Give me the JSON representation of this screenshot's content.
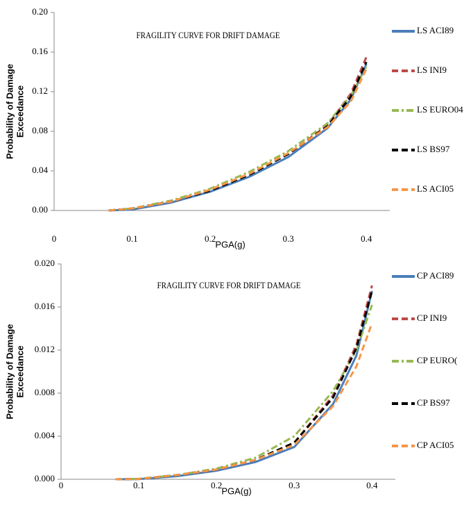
{
  "chart_data": [
    {
      "type": "line",
      "title": "FRAGILITY CURVE FOR DRIFT DAMAGE",
      "xlabel": "PGA(g)",
      "ylabel": [
        "Probability of Damage",
        "Exceedance"
      ],
      "x": [
        0.07,
        0.1,
        0.15,
        0.2,
        0.25,
        0.3,
        0.35,
        0.38,
        0.4
      ],
      "xlim": [
        0,
        0.43
      ],
      "xticks": [
        0,
        0.1,
        0.2,
        0.3,
        0.4
      ],
      "ylim": [
        0,
        0.2
      ],
      "yticks": [
        {
          "value": 0,
          "label": "0.00"
        },
        {
          "value": 0.04,
          "label": "0.04"
        },
        {
          "value": 0.08,
          "label": "0.08"
        },
        {
          "value": 0.12,
          "label": "0.12"
        },
        {
          "value": 0.16,
          "label": "0.16"
        },
        {
          "value": 0.2,
          "label": "0.20"
        }
      ],
      "legend": "right",
      "series": [
        {
          "name": "LS ACI89",
          "color": "#4a7ebb",
          "dash": "solid",
          "values": [
            0,
            0.001,
            0.008,
            0.019,
            0.034,
            0.054,
            0.083,
            0.112,
            0.148
          ]
        },
        {
          "name": "LS INI9",
          "color": "#be4b48",
          "dash": "dash",
          "values": [
            0,
            0.002,
            0.009,
            0.021,
            0.037,
            0.057,
            0.086,
            0.118,
            0.155
          ]
        },
        {
          "name": "LS EURO04",
          "color": "#98b954",
          "dash": "dashdot",
          "values": [
            0,
            0.002,
            0.01,
            0.022,
            0.039,
            0.06,
            0.088,
            0.116,
            0.145
          ]
        },
        {
          "name": "LS BS97",
          "color": "#000000",
          "dash": "dash",
          "values": [
            0,
            0.002,
            0.009,
            0.02,
            0.036,
            0.057,
            0.085,
            0.115,
            0.15
          ]
        },
        {
          "name": "LS ACI05",
          "color": "#f79646",
          "dash": "dash",
          "values": [
            0,
            0.002,
            0.009,
            0.021,
            0.037,
            0.058,
            0.084,
            0.11,
            0.143
          ]
        }
      ]
    },
    {
      "type": "line",
      "title": "FRAGILITY CURVE FOR DRIFT DAMAGE",
      "xlabel": "PGA(g)",
      "ylabel": [
        "Probability of Damage",
        "Exceedance"
      ],
      "x": [
        0.07,
        0.1,
        0.15,
        0.2,
        0.25,
        0.3,
        0.35,
        0.38,
        0.4
      ],
      "xlim": [
        0,
        0.43
      ],
      "xticks": [
        0,
        0.1,
        0.2,
        0.3,
        0.4
      ],
      "ylim": [
        0,
        0.02
      ],
      "yticks": [
        {
          "value": 0,
          "label": "0.000"
        },
        {
          "value": 0.004,
          "label": "0.004"
        },
        {
          "value": 0.008,
          "label": "0.008"
        },
        {
          "value": 0.012,
          "label": "0.012"
        },
        {
          "value": 0.016,
          "label": "0.016"
        },
        {
          "value": 0.02,
          "label": "0.020"
        }
      ],
      "legend": "right",
      "series": [
        {
          "name": "CP ACI89",
          "color": "#4a7ebb",
          "dash": "solid",
          "values": [
            0,
            2e-05,
            0.0003,
            0.0008,
            0.0016,
            0.003,
            0.007,
            0.0115,
            0.0175
          ]
        },
        {
          "name": "CP INI9",
          "color": "#be4b48",
          "dash": "dash",
          "values": [
            0,
            3e-05,
            0.0004,
            0.0009,
            0.0018,
            0.0034,
            0.0078,
            0.0125,
            0.018
          ]
        },
        {
          "name": "CP EURO(",
          "color": "#98b954",
          "dash": "dashdot",
          "values": [
            0,
            4e-05,
            0.0004,
            0.001,
            0.002,
            0.004,
            0.0082,
            0.012,
            0.0162
          ]
        },
        {
          "name": "CP BS97",
          "color": "#000000",
          "dash": "dash",
          "values": [
            0,
            3e-05,
            0.0004,
            0.0009,
            0.0018,
            0.0034,
            0.0076,
            0.0122,
            0.0175
          ]
        },
        {
          "name": "CP ACI05",
          "color": "#f79646",
          "dash": "dash",
          "values": [
            0,
            3e-05,
            0.0004,
            0.0009,
            0.0018,
            0.0032,
            0.0068,
            0.0105,
            0.0145
          ]
        }
      ]
    }
  ]
}
